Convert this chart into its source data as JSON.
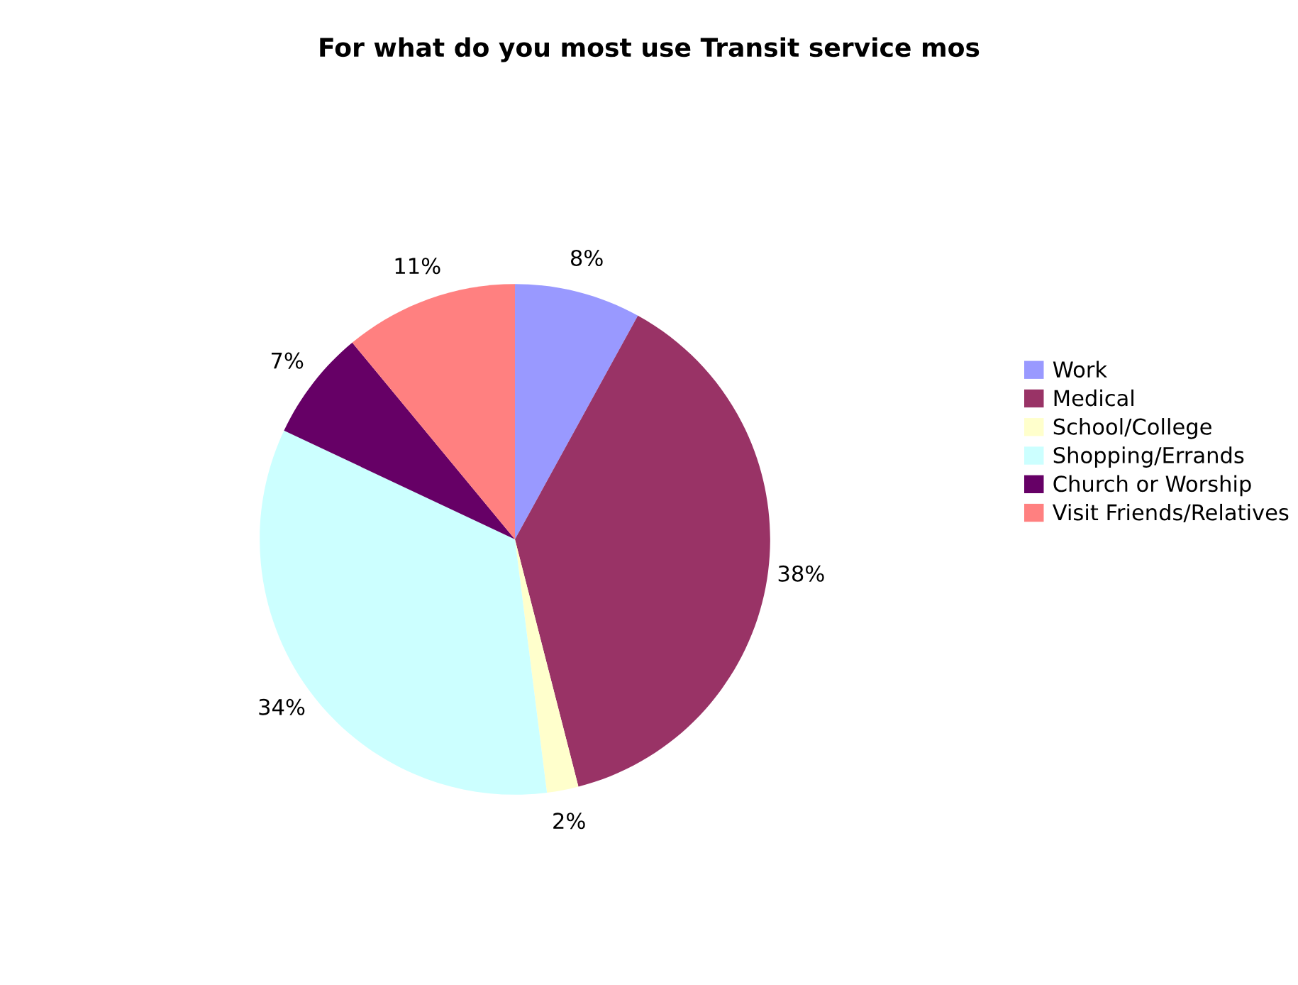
{
  "chart_data": {
    "type": "pie",
    "title": "For what do you most use Transit service mos",
    "categories": [
      "Work",
      "Medical",
      "School/College",
      "Shopping/Errands",
      "Church or Worship",
      "Visit Friends/Relatives"
    ],
    "values": [
      8,
      38,
      2,
      34,
      7,
      11
    ],
    "colors": [
      "#9999ff",
      "#993366",
      "#ffffcc",
      "#ccffff",
      "#660066",
      "#ff8080"
    ],
    "value_labels": [
      "8%",
      "38%",
      "2%",
      "34%",
      "7%",
      "11%"
    ],
    "legend": "right"
  }
}
